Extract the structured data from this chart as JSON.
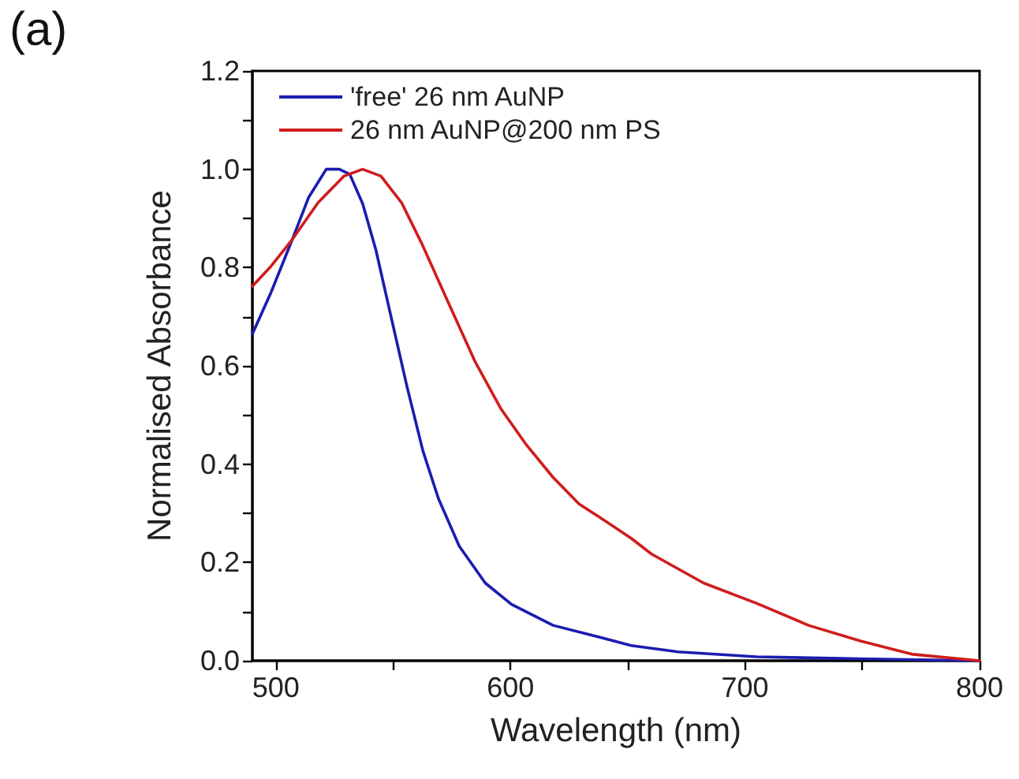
{
  "chart_data": {
    "type": "line",
    "xlabel": "Wavelength (nm)",
    "ylabel": "Normalised Absorbance",
    "annotations": [
      "(a)"
    ],
    "xlim": [
      490,
      800
    ],
    "ylim": [
      0,
      1.2
    ],
    "xticks": [
      500,
      {
        "value": 550,
        "label": null
      },
      600,
      {
        "value": 650,
        "label": null
      },
      700,
      {
        "value": 750,
        "label": null
      },
      800
    ],
    "yticks": [
      {
        "value": 0,
        "label": "0.0"
      },
      {
        "value": 0.1,
        "label": null
      },
      {
        "value": 0.2,
        "label": "0.2"
      },
      {
        "value": 0.3,
        "label": null
      },
      {
        "value": 0.4,
        "label": "0.4"
      },
      {
        "value": 0.5,
        "label": null
      },
      {
        "value": 0.6,
        "label": "0.6"
      },
      {
        "value": 0.7,
        "label": null
      },
      {
        "value": 0.8,
        "label": "0.8"
      },
      {
        "value": 0.9,
        "label": null
      },
      {
        "value": 1.0,
        "label": "1.0"
      },
      {
        "value": 1.1,
        "label": null
      },
      {
        "value": 1.2,
        "label": "1.2"
      }
    ],
    "grid": false,
    "legend": "top left",
    "marker": "none",
    "line_style": "solid",
    "series": [
      {
        "name": "'free' 26 nm AuNP",
        "color": "#1c1cb0",
        "x": [
          490,
          498,
          507,
          514,
          521.5,
          527,
          531.5,
          537,
          542.7,
          549.3,
          556,
          562.7,
          569.3,
          578.2,
          589.3,
          600.4,
          618.2,
          640.4,
          651.5,
          671.5,
          705,
          749,
          800
        ],
        "values": [
          0.665,
          0.75,
          0.857,
          0.943,
          1.0,
          1.0,
          0.99,
          0.93,
          0.835,
          0.696,
          0.556,
          0.427,
          0.33,
          0.233,
          0.158,
          0.115,
          0.072,
          0.045,
          0.031,
          0.018,
          0.008,
          0.004,
          0.0
        ]
      },
      {
        "name": "26 nm AuNP@200 nm PS",
        "color": "#d01c1c",
        "x": [
          490,
          498,
          507,
          518,
          529,
          537,
          544.8,
          553.6,
          562.5,
          573.6,
          584.8,
          595.9,
          607,
          618.2,
          629.3,
          638,
          651.5,
          660.2,
          682.4,
          704.9,
          727.1,
          749.3,
          771.6,
          800
        ],
        "values": [
          0.762,
          0.803,
          0.857,
          0.932,
          0.986,
          1.0,
          0.986,
          0.932,
          0.846,
          0.728,
          0.61,
          0.513,
          0.438,
          0.373,
          0.319,
          0.292,
          0.249,
          0.217,
          0.158,
          0.117,
          0.072,
          0.04,
          0.013,
          0.0
        ]
      }
    ]
  }
}
